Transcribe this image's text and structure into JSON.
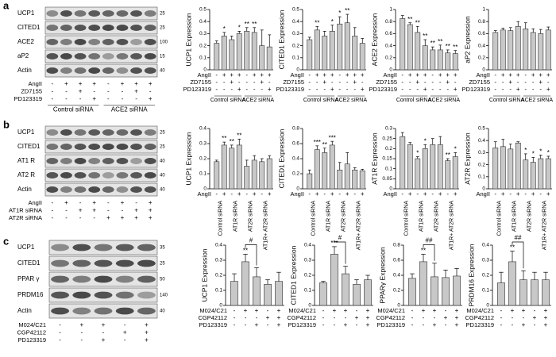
{
  "panels": [
    {
      "label": "a",
      "blot": {
        "rows": [
          "UCP1",
          "CITED1",
          "ACE2",
          "aP2",
          "Actin"
        ],
        "mw": [
          "25",
          "25",
          "100",
          "15",
          "40"
        ]
      },
      "conditions": [
        {
          "name": "AngII",
          "marks": [
            "-",
            "+",
            "+",
            "+",
            "-",
            "+",
            "+",
            "+"
          ]
        },
        {
          "name": "ZD7155",
          "marks": [
            "-",
            "-",
            "+",
            "-",
            "-",
            "-",
            "+",
            "-"
          ]
        },
        {
          "name": "PD123319",
          "marks": [
            "-",
            "-",
            "-",
            "+",
            "-",
            "-",
            "-",
            "+"
          ]
        }
      ],
      "groups": [
        "Control siRNA",
        "ACE2 siRNA"
      ]
    },
    {
      "label": "b",
      "blot": {
        "rows": [
          "UCP1",
          "CITED1",
          "AT1 R",
          "AT2 R",
          "Actin"
        ],
        "mw": [
          "25",
          "25",
          "40",
          "40",
          "40"
        ]
      },
      "conditions": [
        {
          "name": "AngII",
          "marks": [
            "-",
            "+",
            "-",
            "+",
            "-",
            "+",
            "-",
            "+"
          ]
        },
        {
          "name": "AT1R siRNA",
          "marks": [
            "-",
            "-",
            "+",
            "+",
            "-",
            "-",
            "+",
            "+"
          ]
        },
        {
          "name": "AT2R siRNA",
          "marks": [
            "-",
            "-",
            "-",
            "-",
            "+",
            "+",
            "+",
            "+"
          ]
        }
      ],
      "groups": [
        "Control siRNA",
        "AT1R siRNA",
        "AT2R siRNA",
        "AT1R+ AT2R siRNA"
      ]
    },
    {
      "label": "c",
      "blot": {
        "rows": [
          "UCP1",
          "CITED1",
          "PPAR γ",
          "PRDM16",
          "Actin"
        ],
        "mw": [
          "35",
          "25",
          "50",
          "140",
          "40"
        ]
      },
      "conditions": [
        {
          "name": "M024/C21",
          "marks": [
            "-",
            "+",
            "+",
            "-",
            "+"
          ]
        },
        {
          "name": "CGP42112",
          "marks": [
            "-",
            "-",
            "-",
            "+",
            "+"
          ]
        },
        {
          "name": "PD123319",
          "marks": [
            "-",
            "-",
            "+",
            "-",
            "+"
          ]
        }
      ]
    }
  ],
  "chart_data": [
    {
      "type": "bar",
      "ylabel": "UCP1 Expression",
      "ylim": [
        0,
        0.5
      ],
      "yticks": [
        0,
        0.1,
        0.2,
        0.3,
        0.4,
        0.5
      ],
      "color": "#c8c8c8",
      "values": [
        0.22,
        0.28,
        0.25,
        0.3,
        0.32,
        0.31,
        0.2,
        0.19
      ],
      "errors": [
        0.02,
        0.03,
        0.03,
        0.02,
        0.03,
        0.04,
        0.13,
        0.1
      ],
      "stars": [
        null,
        "*",
        null,
        "*",
        "**",
        "**",
        null,
        null
      ]
    },
    {
      "type": "bar",
      "ylabel": "CITED1 Expression",
      "ylim": [
        0,
        0.5
      ],
      "yticks": [
        0,
        0.1,
        0.2,
        0.3,
        0.4,
        0.5
      ],
      "color": "#c8c8c8",
      "values": [
        0.25,
        0.33,
        0.28,
        0.32,
        0.38,
        0.39,
        0.28,
        0.22
      ],
      "errors": [
        0.02,
        0.03,
        0.04,
        0.05,
        0.06,
        0.07,
        0.07,
        0.04
      ],
      "stars": [
        null,
        "**",
        null,
        "*",
        "*",
        "**",
        null,
        null
      ]
    },
    {
      "type": "bar",
      "ylabel": "ACE2 Expression",
      "ylim": [
        0,
        1
      ],
      "yticks": [
        0,
        0.2,
        0.4,
        0.6,
        0.8,
        1
      ],
      "color": "#c8c8c8",
      "values": [
        0.85,
        0.75,
        0.62,
        0.4,
        0.33,
        0.33,
        0.28,
        0.27
      ],
      "errors": [
        0.05,
        0.03,
        0.1,
        0.1,
        0.05,
        0.08,
        0.05,
        0.05
      ],
      "stars": [
        null,
        "**",
        "**",
        "**",
        "**",
        "**",
        "**",
        "**"
      ]
    },
    {
      "type": "bar",
      "ylabel": "aP2 Expression",
      "ylim": [
        0,
        1
      ],
      "yticks": [
        0,
        0.2,
        0.4,
        0.6,
        0.8,
        1
      ],
      "color": "#c8c8c8",
      "values": [
        0.62,
        0.66,
        0.65,
        0.72,
        0.68,
        0.62,
        0.6,
        0.66
      ],
      "errors": [
        0.03,
        0.03,
        0.05,
        0.08,
        0.1,
        0.06,
        0.07,
        0.05
      ]
    },
    {
      "type": "bar",
      "ylabel": "UCP1 Expression",
      "ylim": [
        0,
        0.4
      ],
      "yticks": [
        0,
        0.1,
        0.2,
        0.3,
        0.4
      ],
      "color": "#c8c8c8",
      "values": [
        0.18,
        0.29,
        0.27,
        0.29,
        0.15,
        0.19,
        0.18,
        0.2
      ],
      "errors": [
        0.01,
        0.02,
        0.02,
        0.04,
        0.04,
        0.03,
        0.02,
        0.02
      ],
      "stars": [
        null,
        "**",
        "**",
        "**",
        null,
        null,
        null,
        null
      ]
    },
    {
      "type": "bar",
      "ylabel": "CITED1 Expression",
      "ylim": [
        0,
        0.8
      ],
      "yticks": [
        0,
        0.2,
        0.4,
        0.6,
        0.8
      ],
      "color": "#c8c8c8",
      "values": [
        0.2,
        0.52,
        0.48,
        0.58,
        0.25,
        0.33,
        0.25,
        0.24
      ],
      "errors": [
        0.05,
        0.05,
        0.06,
        0.05,
        0.1,
        0.15,
        0.03,
        0.02
      ],
      "stars": [
        null,
        "***",
        "**",
        "***",
        null,
        null,
        null,
        null
      ]
    },
    {
      "type": "bar",
      "ylabel": "AT1R Expression",
      "ylim": [
        0,
        0.3
      ],
      "yticks": [
        0,
        0.05,
        0.1,
        0.15,
        0.2,
        0.25,
        0.3
      ],
      "color": "#c8c8c8",
      "values": [
        0.26,
        0.22,
        0.15,
        0.2,
        0.22,
        0.22,
        0.14,
        0.16
      ],
      "errors": [
        0.02,
        0.01,
        0.01,
        0.02,
        0.03,
        0.04,
        0.01,
        0.02
      ],
      "stars": [
        null,
        null,
        "*",
        "*",
        null,
        null,
        "**",
        "*"
      ]
    },
    {
      "type": "bar",
      "ylabel": "AT2R Expression",
      "ylim": [
        0,
        0.5
      ],
      "yticks": [
        0,
        0.1,
        0.2,
        0.3,
        0.4,
        0.5
      ],
      "color": "#c8c8c8",
      "values": [
        0.34,
        0.35,
        0.33,
        0.38,
        0.24,
        0.22,
        0.25,
        0.25
      ],
      "errors": [
        0.05,
        0.06,
        0.04,
        0.01,
        0.05,
        0.04,
        0.03,
        0.02
      ],
      "stars": [
        null,
        null,
        null,
        null,
        "*",
        "*",
        "*",
        "*"
      ]
    },
    {
      "type": "bar",
      "ylabel": "UCP1 Expression",
      "ylim": [
        0,
        0.4
      ],
      "yticks": [
        0,
        0.1,
        0.2,
        0.3,
        0.4
      ],
      "color": "#c8c8c8",
      "values": [
        0.16,
        0.29,
        0.19,
        0.14,
        0.16
      ],
      "errors": [
        0.05,
        0.05,
        0.06,
        0.03,
        0.06
      ],
      "stars": [
        null,
        "**",
        null,
        null,
        null
      ],
      "bracket": "#"
    },
    {
      "type": "bar",
      "ylabel": "CITED1 Expression",
      "ylim": [
        0,
        0.4
      ],
      "yticks": [
        0,
        0.1,
        0.2,
        0.3,
        0.4
      ],
      "color": "#c8c8c8",
      "values": [
        0.15,
        0.34,
        0.21,
        0.14,
        0.17
      ],
      "errors": [
        0.01,
        0.05,
        0.05,
        0.03,
        0.03
      ],
      "stars": [
        null,
        "***",
        null,
        null,
        null
      ],
      "bracket": "#"
    },
    {
      "type": "bar",
      "ylabel": "PPARγ Expression",
      "ylim": [
        0,
        0.8
      ],
      "yticks": [
        0,
        0.2,
        0.4,
        0.6,
        0.8
      ],
      "color": "#c8c8c8",
      "values": [
        0.36,
        0.58,
        0.38,
        0.37,
        0.39
      ],
      "errors": [
        0.06,
        0.1,
        0.18,
        0.1,
        0.1
      ],
      "stars": [
        null,
        "**",
        null,
        null,
        null
      ],
      "bracket": "##"
    },
    {
      "type": "bar",
      "ylabel": "PRDM16 Expression",
      "ylim": [
        0,
        0.4
      ],
      "yticks": [
        0,
        0.1,
        0.2,
        0.3,
        0.4
      ],
      "color": "#c8c8c8",
      "values": [
        0.15,
        0.29,
        0.17,
        0.17,
        0.17
      ],
      "errors": [
        0.07,
        0.07,
        0.06,
        0.05,
        0.05
      ],
      "stars": [
        null,
        "**",
        null,
        null,
        null
      ],
      "bracket": "##"
    }
  ]
}
